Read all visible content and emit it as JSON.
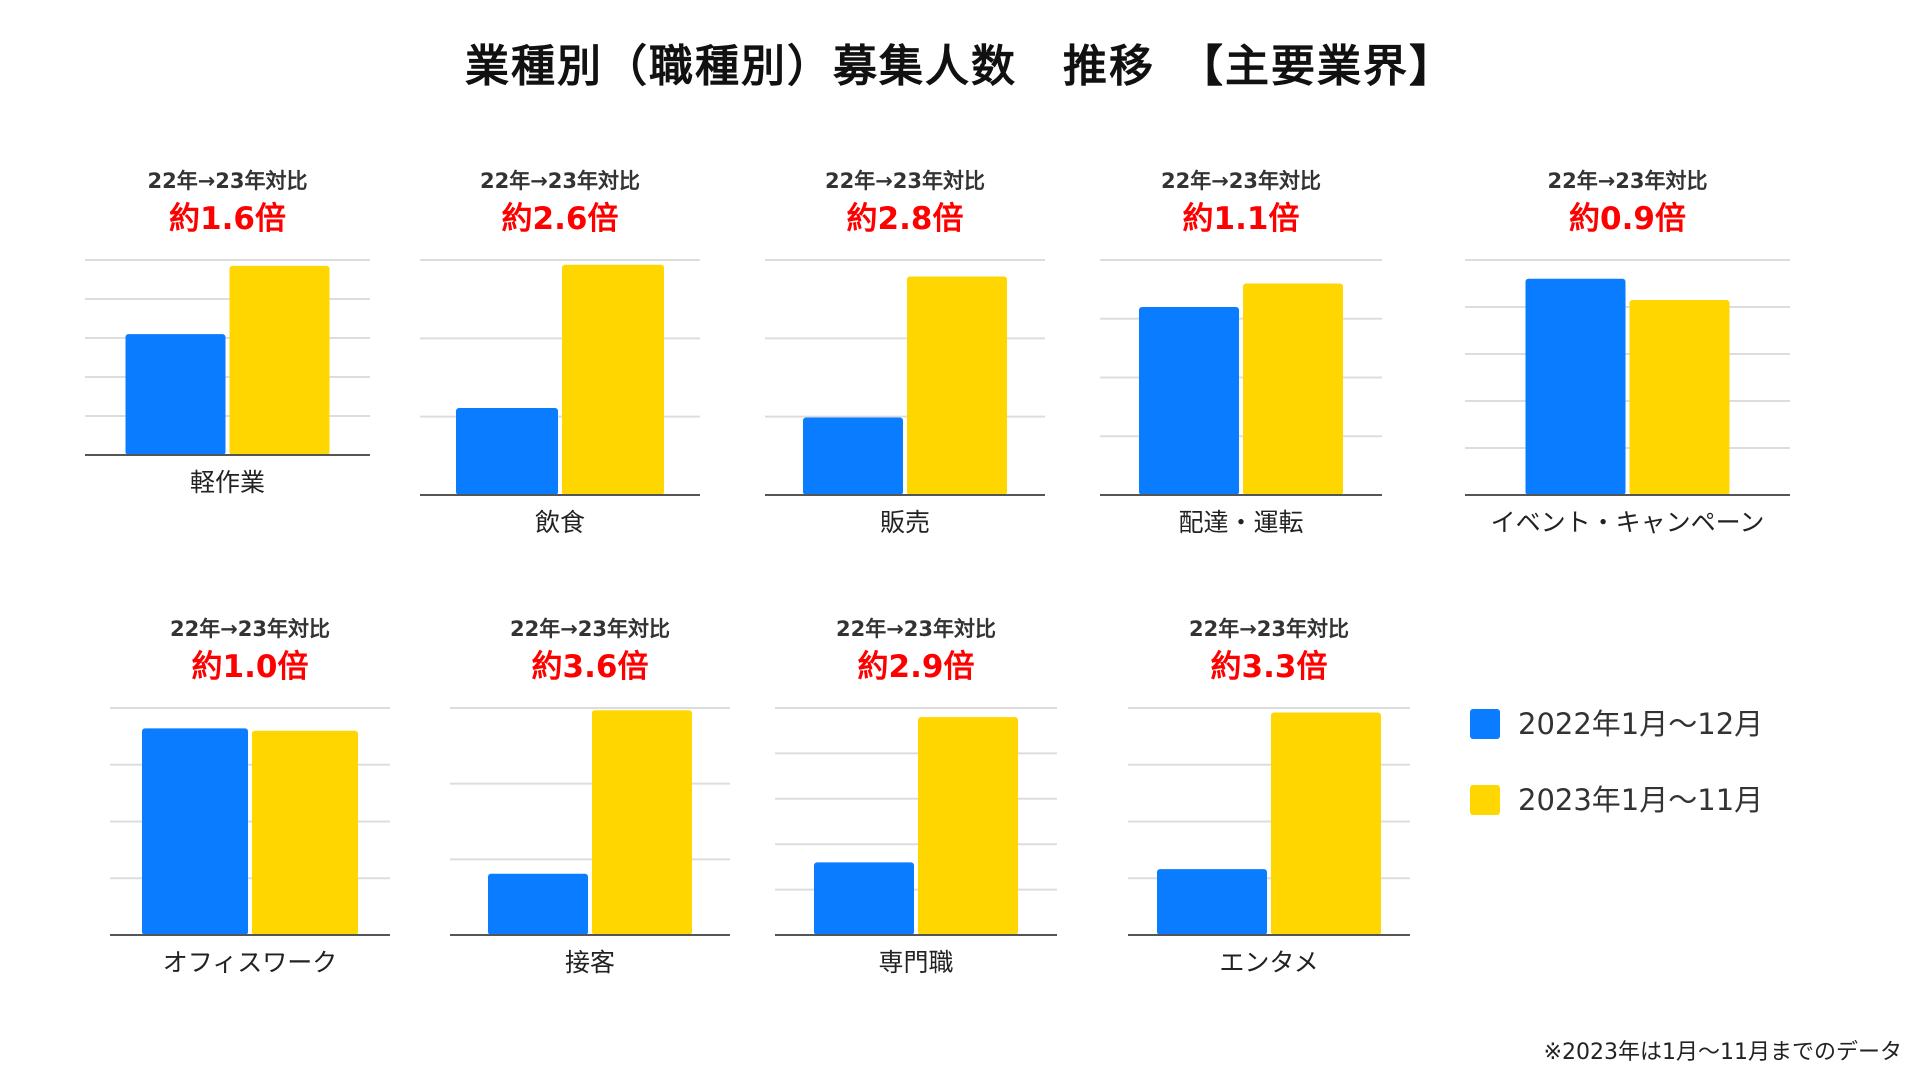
{
  "title": "業種別（職種別）募集人数　推移　【主要業界】",
  "colors": {
    "series_2022": "#0a7cff",
    "series_2023": "#ffd600",
    "ratio_text": "#ff0000",
    "grid": "#dddddd",
    "baseline": "#555555"
  },
  "legend": [
    {
      "label": "2022年1月〜12月",
      "color": "#0a7cff"
    },
    {
      "label": "2023年1月〜11月",
      "color": "#ffd600"
    }
  ],
  "footnote": "※2023年は1月〜11月までのデータ",
  "chart_data": [
    {
      "type": "bar",
      "category": "軽作業",
      "caption": "22年→23年対比",
      "ratio": "約1.6倍",
      "series": [
        {
          "name": "2022年1月〜12月",
          "value": 62
        },
        {
          "name": "2023年1月〜11月",
          "value": 97
        }
      ],
      "ylim": [
        0,
        100
      ],
      "grid": true
    },
    {
      "type": "bar",
      "category": "飲食",
      "caption": "22年→23年対比",
      "ratio": "約2.6倍",
      "series": [
        {
          "name": "2022年1月〜12月",
          "value": 37
        },
        {
          "name": "2023年1月〜11月",
          "value": 98
        }
      ],
      "ylim": [
        0,
        100
      ],
      "grid": true
    },
    {
      "type": "bar",
      "category": "販売",
      "caption": "22年→23年対比",
      "ratio": "約2.8倍",
      "series": [
        {
          "name": "2022年1月〜12月",
          "value": 33
        },
        {
          "name": "2023年1月〜11月",
          "value": 93
        }
      ],
      "ylim": [
        0,
        100
      ],
      "grid": true
    },
    {
      "type": "bar",
      "category": "配達・運転",
      "caption": "22年→23年対比",
      "ratio": "約1.1倍",
      "series": [
        {
          "name": "2022年1月〜12月",
          "value": 80
        },
        {
          "name": "2023年1月〜11月",
          "value": 90
        }
      ],
      "ylim": [
        0,
        100
      ],
      "grid": true
    },
    {
      "type": "bar",
      "category": "イベント・キャンペーン",
      "caption": "22年→23年対比",
      "ratio": "約0.9倍",
      "series": [
        {
          "name": "2022年1月〜12月",
          "value": 92
        },
        {
          "name": "2023年1月〜11月",
          "value": 83
        }
      ],
      "ylim": [
        0,
        100
      ],
      "grid": true
    },
    {
      "type": "bar",
      "category": "オフィスワーク",
      "caption": "22年→23年対比",
      "ratio": "約1.0倍",
      "series": [
        {
          "name": "2022年1月〜12月",
          "value": 91
        },
        {
          "name": "2023年1月〜11月",
          "value": 90
        }
      ],
      "ylim": [
        0,
        100
      ],
      "grid": true
    },
    {
      "type": "bar",
      "category": "接客",
      "caption": "22年→23年対比",
      "ratio": "約3.6倍",
      "series": [
        {
          "name": "2022年1月〜12月",
          "value": 27
        },
        {
          "name": "2023年1月〜11月",
          "value": 99
        }
      ],
      "ylim": [
        0,
        100
      ],
      "grid": true
    },
    {
      "type": "bar",
      "category": "専門職",
      "caption": "22年→23年対比",
      "ratio": "約2.9倍",
      "series": [
        {
          "name": "2022年1月〜12月",
          "value": 32
        },
        {
          "name": "2023年1月〜11月",
          "value": 96
        }
      ],
      "ylim": [
        0,
        100
      ],
      "grid": true
    },
    {
      "type": "bar",
      "category": "エンタメ",
      "caption": "22年→23年対比",
      "ratio": "約3.3倍",
      "series": [
        {
          "name": "2022年1月〜12月",
          "value": 29
        },
        {
          "name": "2023年1月〜11月",
          "value": 98
        }
      ],
      "ylim": [
        0,
        100
      ],
      "grid": true
    }
  ]
}
